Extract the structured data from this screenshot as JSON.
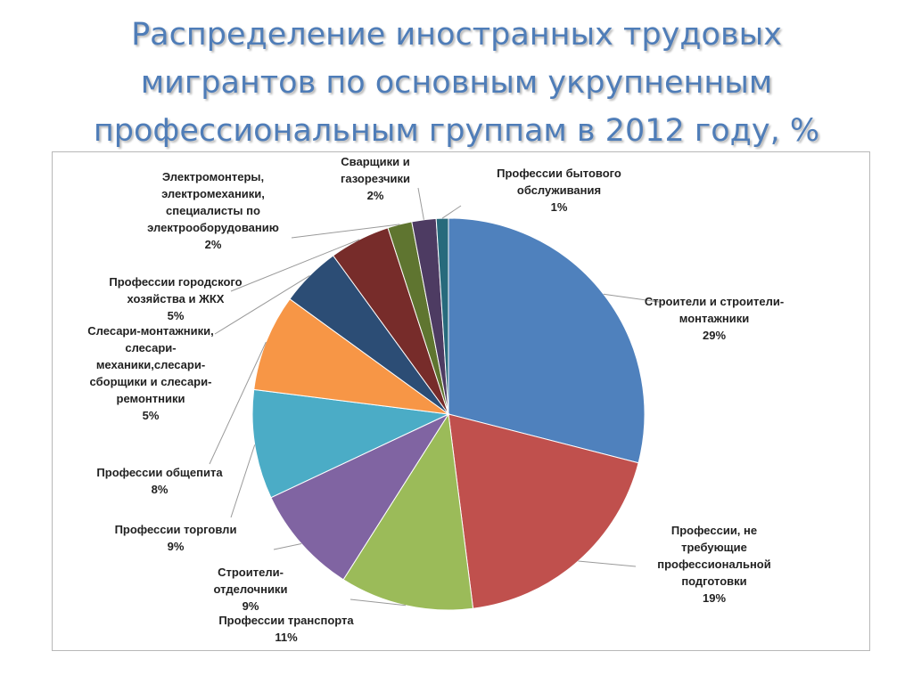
{
  "title": {
    "lines": [
      "Распределение иностранных трудовых",
      "мигрантов по основным укрупненным",
      "профессиональным группам в 2012 году, %"
    ]
  },
  "chart_data": {
    "type": "pie",
    "title": "Распределение иностранных трудовых мигрантов по основным укрупненным профессиональным группам в 2012 году, %",
    "unit": "%",
    "start": "12 o'clock, clockwise",
    "slices": [
      {
        "label": "Строители и строители-монтажники",
        "value": 29,
        "value_label": "29%",
        "color": "#4f81bd"
      },
      {
        "label": "Профессии, не требующие профессиональной подготовки",
        "value": 19,
        "value_label": "19%",
        "color": "#c0504d"
      },
      {
        "label": "Профессии транспорта",
        "value": 11,
        "value_label": "11%",
        "color": "#9bbb59"
      },
      {
        "label": "Строители-отделочники",
        "value": 9,
        "value_label": "9%",
        "color": "#8064a2"
      },
      {
        "label": "Профессии торговли",
        "value": 9,
        "value_label": "9%",
        "color": "#4bacc6"
      },
      {
        "label": "Профессии общепита",
        "value": 8,
        "value_label": "8%",
        "color": "#f79646"
      },
      {
        "label": "Слесари-монтажники, слесари-механики,слесари-сборщики и слесари-ремонтники",
        "value": 5,
        "value_label": "5%",
        "color": "#2c4d75"
      },
      {
        "label": "Профессии городского хозяйства и ЖКХ",
        "value": 5,
        "value_label": "5%",
        "color": "#772c2a"
      },
      {
        "label": "Электромонтеры, электромеханики, специалисты по электрооборудованию",
        "value": 2,
        "value_label": "2%",
        "color": "#5f7530"
      },
      {
        "label": "Сварщики и газорезчики",
        "value": 2,
        "value_label": "2%",
        "color": "#4d3b62"
      },
      {
        "label": "Профессии бытового обслуживания",
        "value": 1,
        "value_label": "1%",
        "color": "#276a7c"
      }
    ],
    "label_lines": [
      [
        "Строители и строители-",
        "монтажники",
        "29%"
      ],
      [
        "Профессии, не",
        "требующие",
        "профессиональной",
        "подготовки",
        "19%"
      ],
      [
        "Профессии транспорта",
        "11%"
      ],
      [
        "Строители-",
        "отделочники",
        "9%"
      ],
      [
        "Профессии торговли",
        "9%"
      ],
      [
        "Профессии общепита",
        "8%"
      ],
      [
        "Слесари-монтажники,",
        "слесари-",
        "механики,слесари-",
        "сборщики и слесари-",
        "ремонтники",
        "5%"
      ],
      [
        "Профессии городского",
        "хозяйства и ЖКХ",
        "5%"
      ],
      [
        "Электромонтеры,",
        "электромеханики,",
        "специалисты по",
        "электрооборудованию",
        "2%"
      ],
      [
        "Сварщики и",
        "газорезчики",
        "2%"
      ],
      [
        "Профессии бытового",
        "обслуживания",
        "1%"
      ]
    ],
    "legend": "none",
    "data_labels": "outside with leader lines"
  }
}
